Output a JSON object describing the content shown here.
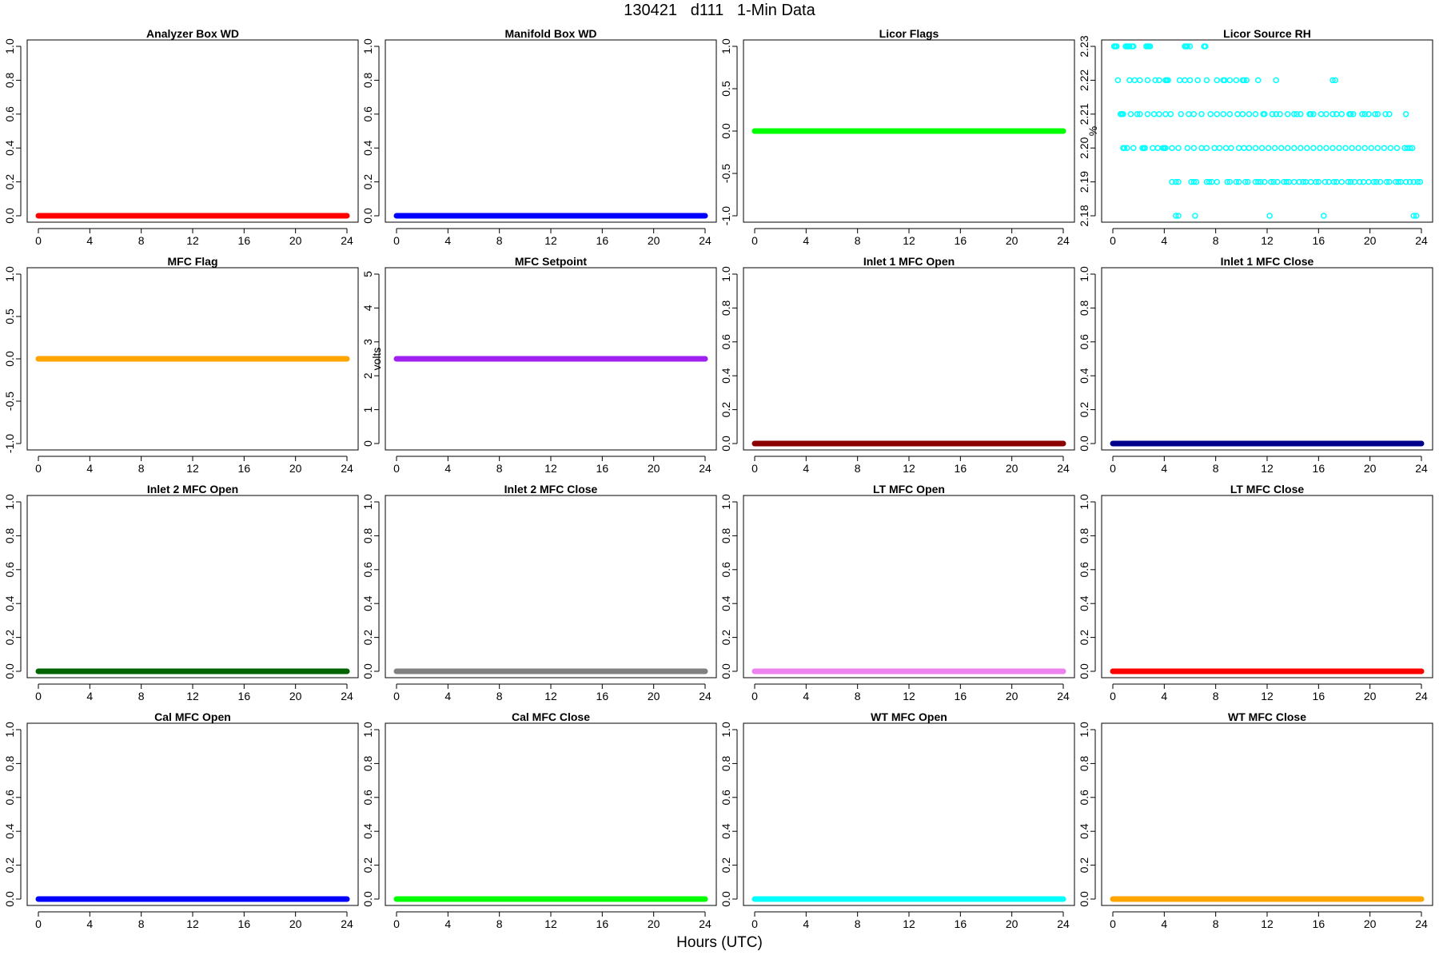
{
  "figure": {
    "title": "130421   d111   1-Min Data",
    "xlabel": "Hours (UTC)"
  },
  "chart_data": [
    {
      "type": "line",
      "title": "Analyzer Box WD",
      "ylabel": "",
      "color": "#ff0000",
      "xlim": [
        0,
        24
      ],
      "ylim": [
        0,
        1
      ],
      "yticks": [
        "0.0",
        "0.2",
        "0.4",
        "0.6",
        "0.8",
        "1.0"
      ],
      "xticks": [
        "0",
        "4",
        "8",
        "12",
        "16",
        "20",
        "24"
      ],
      "series": [
        {
          "x": [
            0,
            24
          ],
          "y": [
            0,
            0
          ]
        }
      ]
    },
    {
      "type": "line",
      "title": "Manifold Box WD",
      "ylabel": "",
      "color": "#0000ff",
      "xlim": [
        0,
        24
      ],
      "ylim": [
        0,
        1
      ],
      "yticks": [
        "0.0",
        "0.2",
        "0.4",
        "0.6",
        "0.8",
        "1.0"
      ],
      "xticks": [
        "0",
        "4",
        "8",
        "12",
        "16",
        "20",
        "24"
      ],
      "series": [
        {
          "x": [
            0,
            24
          ],
          "y": [
            0,
            0
          ]
        }
      ]
    },
    {
      "type": "line",
      "title": "Licor Flags",
      "ylabel": "",
      "color": "#00ff00",
      "xlim": [
        0,
        24
      ],
      "ylim": [
        -1,
        1
      ],
      "yticks": [
        "-1.0",
        "-0.5",
        "0.0",
        "0.5",
        "1.0"
      ],
      "xticks": [
        "0",
        "4",
        "8",
        "12",
        "16",
        "20",
        "24"
      ],
      "series": [
        {
          "x": [
            0,
            24
          ],
          "y": [
            0,
            0
          ]
        }
      ]
    },
    {
      "type": "scatter",
      "title": "Licor Source RH",
      "ylabel": "%",
      "color": "#00ffff",
      "xlim": [
        0,
        24
      ],
      "ylim": [
        2.18,
        2.23
      ],
      "yticks": [
        "2.18",
        "2.19",
        "2.20",
        "2.21",
        "2.22",
        "2.23"
      ],
      "xticks": [
        "0",
        "4",
        "8",
        "12",
        "16",
        "20",
        "24"
      ],
      "series": [
        {
          "y": 2.23,
          "x": [
            0.1,
            0.2,
            0.3,
            1.0,
            1.1,
            1.2,
            1.3,
            1.5,
            1.6,
            2.6,
            2.7,
            2.8,
            2.9,
            5.6,
            5.7,
            5.8,
            6.0,
            7.1,
            7.2
          ]
        },
        {
          "y": 2.22,
          "x": [
            0.4,
            1.3,
            1.7,
            2.1,
            2.7,
            3.3,
            3.6,
            4.1,
            4.2,
            4.3,
            5.2,
            5.6,
            6.0,
            6.6,
            7.3,
            8.1,
            8.6,
            8.7,
            9.1,
            9.6,
            10.1,
            10.2,
            10.4,
            11.3,
            12.7,
            17.1,
            17.3
          ]
        },
        {
          "y": 2.21,
          "x": [
            0.6,
            0.7,
            0.8,
            1.4,
            1.9,
            2.1,
            2.7,
            3.2,
            3.6,
            4.1,
            4.5,
            5.3,
            5.9,
            6.3,
            6.9,
            7.6,
            8.1,
            8.6,
            9.1,
            9.7,
            10.1,
            10.6,
            11.1,
            11.7,
            11.8,
            12.4,
            12.7,
            13.0,
            13.6,
            14.1,
            14.3,
            14.6,
            15.3,
            15.4,
            15.6,
            16.2,
            16.6,
            17.1,
            17.4,
            17.8,
            18.4,
            18.5,
            18.7,
            19.4,
            19.6,
            19.9,
            20.4,
            20.6,
            21.2,
            21.5,
            22.8
          ]
        },
        {
          "y": 2.2,
          "x": [
            0.8,
            0.9,
            1.1,
            1.6,
            2.3,
            2.4,
            2.5,
            3.1,
            3.5,
            3.9,
            4.0,
            4.1,
            4.6,
            5.1,
            5.8,
            6.3,
            6.9,
            7.3,
            7.9,
            8.3,
            8.8,
            9.2,
            9.8,
            10.2,
            10.6,
            11.1,
            11.6,
            12.1,
            12.6,
            13.1,
            13.6,
            14.1,
            14.6,
            15.1,
            15.6,
            16.1,
            16.6,
            17.1,
            17.6,
            18.1,
            18.6,
            19.1,
            19.6,
            20.1,
            20.6,
            21.1,
            21.6,
            22.1,
            22.7,
            22.9,
            23.1,
            23.3
          ]
        },
        {
          "y": 2.19,
          "x": [
            4.6,
            4.9,
            5.1,
            6.1,
            6.3,
            6.5,
            7.3,
            7.5,
            7.7,
            8.1,
            8.9,
            9.1,
            9.6,
            9.8,
            10.3,
            10.5,
            11.1,
            11.3,
            11.5,
            11.8,
            12.3,
            12.5,
            12.8,
            13.3,
            13.5,
            13.7,
            14.1,
            14.5,
            14.8,
            15.0,
            15.4,
            15.8,
            16.0,
            16.5,
            16.8,
            17.2,
            17.4,
            17.8,
            18.3,
            18.5,
            18.8,
            19.2,
            19.5,
            19.9,
            20.3,
            20.5,
            20.8,
            21.3,
            21.5,
            22.0,
            22.2,
            22.4,
            22.8,
            23.1,
            23.4,
            23.7,
            23.9
          ]
        },
        {
          "y": 2.18,
          "x": [
            4.9,
            5.1,
            6.4,
            12.2,
            16.4,
            23.4,
            23.6
          ]
        }
      ]
    },
    {
      "type": "line",
      "title": "MFC Flag",
      "ylabel": "",
      "color": "#ffa500",
      "xlim": [
        0,
        24
      ],
      "ylim": [
        -1,
        1
      ],
      "yticks": [
        "-1.0",
        "-0.5",
        "0.0",
        "0.5",
        "1.0"
      ],
      "xticks": [
        "0",
        "4",
        "8",
        "12",
        "16",
        "20",
        "24"
      ],
      "series": [
        {
          "x": [
            0,
            24
          ],
          "y": [
            0,
            0
          ]
        }
      ]
    },
    {
      "type": "line",
      "title": "MFC Setpoint",
      "ylabel": "volts",
      "color": "#a020f0",
      "xlim": [
        0,
        24
      ],
      "ylim": [
        0,
        5
      ],
      "yticks": [
        "0",
        "1",
        "2",
        "3",
        "4",
        "5"
      ],
      "xticks": [
        "0",
        "4",
        "8",
        "12",
        "16",
        "20",
        "24"
      ],
      "series": [
        {
          "x": [
            0,
            24
          ],
          "y": [
            2.5,
            2.5
          ]
        }
      ]
    },
    {
      "type": "line",
      "title": "Inlet 1 MFC Open",
      "ylabel": "",
      "color": "#8b0000",
      "xlim": [
        0,
        24
      ],
      "ylim": [
        0,
        1
      ],
      "yticks": [
        "0.0",
        "0.2",
        "0.4",
        "0.6",
        "0.8",
        "1.0"
      ],
      "xticks": [
        "0",
        "4",
        "8",
        "12",
        "16",
        "20",
        "24"
      ],
      "series": [
        {
          "x": [
            0,
            24
          ],
          "y": [
            0,
            0
          ]
        }
      ]
    },
    {
      "type": "line",
      "title": "Inlet 1 MFC Close",
      "ylabel": "",
      "color": "#00008b",
      "xlim": [
        0,
        24
      ],
      "ylim": [
        0,
        1
      ],
      "yticks": [
        "0.0",
        "0.2",
        "0.4",
        "0.6",
        "0.8",
        "1.0"
      ],
      "xticks": [
        "0",
        "4",
        "8",
        "12",
        "16",
        "20",
        "24"
      ],
      "series": [
        {
          "x": [
            0,
            24
          ],
          "y": [
            0,
            0
          ]
        }
      ]
    },
    {
      "type": "line",
      "title": "Inlet 2 MFC Open",
      "ylabel": "",
      "color": "#006400",
      "xlim": [
        0,
        24
      ],
      "ylim": [
        0,
        1
      ],
      "yticks": [
        "0.0",
        "0.2",
        "0.4",
        "0.6",
        "0.8",
        "1.0"
      ],
      "xticks": [
        "0",
        "4",
        "8",
        "12",
        "16",
        "20",
        "24"
      ],
      "series": [
        {
          "x": [
            0,
            24
          ],
          "y": [
            0,
            0
          ]
        }
      ]
    },
    {
      "type": "line",
      "title": "Inlet 2 MFC Close",
      "ylabel": "",
      "color": "#808080",
      "xlim": [
        0,
        24
      ],
      "ylim": [
        0,
        1
      ],
      "yticks": [
        "0.0",
        "0.2",
        "0.4",
        "0.6",
        "0.8",
        "1.0"
      ],
      "xticks": [
        "0",
        "4",
        "8",
        "12",
        "16",
        "20",
        "24"
      ],
      "series": [
        {
          "x": [
            0,
            24
          ],
          "y": [
            0,
            0
          ]
        }
      ]
    },
    {
      "type": "line",
      "title": "LT MFC Open",
      "ylabel": "",
      "color": "#ee82ee",
      "xlim": [
        0,
        24
      ],
      "ylim": [
        0,
        1
      ],
      "yticks": [
        "0.0",
        "0.2",
        "0.4",
        "0.6",
        "0.8",
        "1.0"
      ],
      "xticks": [
        "0",
        "4",
        "8",
        "12",
        "16",
        "20",
        "24"
      ],
      "series": [
        {
          "x": [
            0,
            24
          ],
          "y": [
            0,
            0
          ]
        }
      ]
    },
    {
      "type": "line",
      "title": "LT MFC Close",
      "ylabel": "",
      "color": "#ff0000",
      "xlim": [
        0,
        24
      ],
      "ylim": [
        0,
        1
      ],
      "yticks": [
        "0.0",
        "0.2",
        "0.4",
        "0.6",
        "0.8",
        "1.0"
      ],
      "xticks": [
        "0",
        "4",
        "8",
        "12",
        "16",
        "20",
        "24"
      ],
      "series": [
        {
          "x": [
            0,
            24
          ],
          "y": [
            0,
            0
          ]
        }
      ]
    },
    {
      "type": "line",
      "title": "Cal MFC Open",
      "ylabel": "",
      "color": "#0000ff",
      "xlim": [
        0,
        24
      ],
      "ylim": [
        0,
        1
      ],
      "yticks": [
        "0.0",
        "0.2",
        "0.4",
        "0.6",
        "0.8",
        "1.0"
      ],
      "xticks": [
        "0",
        "4",
        "8",
        "12",
        "16",
        "20",
        "24"
      ],
      "series": [
        {
          "x": [
            0,
            24
          ],
          "y": [
            0,
            0
          ]
        }
      ]
    },
    {
      "type": "line",
      "title": "Cal MFC Close",
      "ylabel": "",
      "color": "#00ff00",
      "xlim": [
        0,
        24
      ],
      "ylim": [
        0,
        1
      ],
      "yticks": [
        "0.0",
        "0.2",
        "0.4",
        "0.6",
        "0.8",
        "1.0"
      ],
      "xticks": [
        "0",
        "4",
        "8",
        "12",
        "16",
        "20",
        "24"
      ],
      "series": [
        {
          "x": [
            0,
            24
          ],
          "y": [
            0,
            0
          ]
        }
      ]
    },
    {
      "type": "line",
      "title": "WT MFC Open",
      "ylabel": "",
      "color": "#00ffff",
      "xlim": [
        0,
        24
      ],
      "ylim": [
        0,
        1
      ],
      "yticks": [
        "0.0",
        "0.2",
        "0.4",
        "0.6",
        "0.8",
        "1.0"
      ],
      "xticks": [
        "0",
        "4",
        "8",
        "12",
        "16",
        "20",
        "24"
      ],
      "series": [
        {
          "x": [
            0,
            24
          ],
          "y": [
            0,
            0
          ]
        }
      ]
    },
    {
      "type": "line",
      "title": "WT MFC Close",
      "ylabel": "",
      "color": "#ffa500",
      "xlim": [
        0,
        24
      ],
      "ylim": [
        0,
        1
      ],
      "yticks": [
        "0.0",
        "0.2",
        "0.4",
        "0.6",
        "0.8",
        "1.0"
      ],
      "xticks": [
        "0",
        "4",
        "8",
        "12",
        "16",
        "20",
        "24"
      ],
      "series": [
        {
          "x": [
            0,
            24
          ],
          "y": [
            0,
            0
          ]
        }
      ]
    }
  ]
}
